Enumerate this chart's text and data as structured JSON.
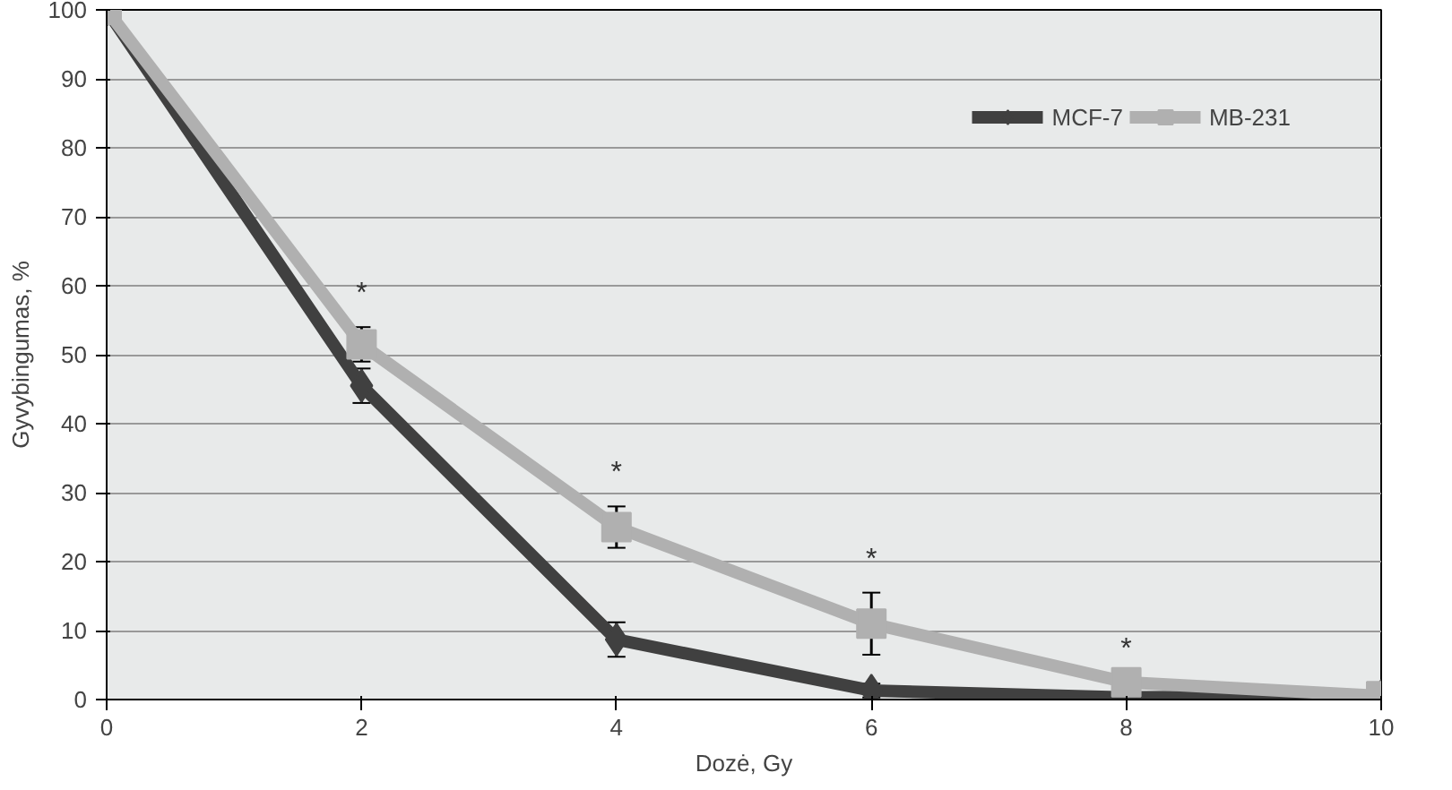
{
  "chart_data": {
    "type": "line",
    "xlabel": "Dozė, Gy",
    "ylabel": "Gyvybingumas, %",
    "x": [
      0,
      2,
      4,
      6,
      8,
      10
    ],
    "series": [
      {
        "name": "MCF-7",
        "color": "#404040",
        "marker": "diamond",
        "values": [
          100,
          45.5,
          8.7,
          1.3,
          0.3,
          0.5
        ],
        "errors": [
          null,
          2.5,
          2.5,
          1,
          null,
          null
        ]
      },
      {
        "name": "MB-231",
        "color": "#b0b0b0",
        "marker": "square",
        "values": [
          100,
          51.5,
          25,
          11,
          2.5,
          0.5
        ],
        "errors": [
          null,
          2.5,
          3,
          4.5,
          null,
          null
        ]
      }
    ],
    "annotations": [
      {
        "text": "*",
        "x": 2,
        "y": 51.5
      },
      {
        "text": "*",
        "x": 4,
        "y": 25
      },
      {
        "text": "*",
        "x": 6,
        "y": 11
      },
      {
        "text": "*",
        "x": 8,
        "y": 2.5
      }
    ],
    "xlim": [
      0,
      10
    ],
    "xticks": [
      0,
      2,
      4,
      6,
      8,
      10
    ],
    "ylim": [
      0,
      100
    ],
    "yticks": [
      0,
      10,
      20,
      30,
      40,
      50,
      60,
      70,
      80,
      90,
      100
    ],
    "grid": "y",
    "legend": "top right",
    "line_style": "solid"
  }
}
